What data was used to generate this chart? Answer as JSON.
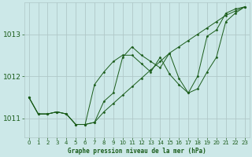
{
  "bg_color": "#cce8e8",
  "grid_color": "#b0c8c8",
  "line_color": "#1a5c1a",
  "marker_color": "#1a5c1a",
  "xlabel": "Graphe pression niveau de la mer (hPa)",
  "xlabel_color": "#1a5c1a",
  "ylim": [
    1010.55,
    1013.75
  ],
  "xlim": [
    -0.5,
    23.5
  ],
  "yticks": [
    1011,
    1012,
    1013
  ],
  "xticks": [
    0,
    1,
    2,
    3,
    4,
    5,
    6,
    7,
    8,
    9,
    10,
    11,
    12,
    13,
    14,
    15,
    16,
    17,
    18,
    19,
    20,
    21,
    22,
    23
  ],
  "series": [
    [
      1011.5,
      1011.1,
      1011.1,
      1011.15,
      1011.1,
      1010.85,
      1010.85,
      1010.9,
      1011.15,
      1011.35,
      1011.55,
      1011.75,
      1011.95,
      1012.15,
      1012.35,
      1012.55,
      1012.7,
      1012.85,
      1013.0,
      1013.15,
      1013.3,
      1013.45,
      1013.55,
      1013.65
    ],
    [
      1011.5,
      1011.1,
      1011.1,
      1011.15,
      1011.1,
      1010.85,
      1010.85,
      1011.8,
      1012.1,
      1012.35,
      1012.5,
      1012.5,
      1012.3,
      1012.1,
      1012.45,
      1012.05,
      1011.8,
      1011.6,
      1012.0,
      1012.95,
      1013.1,
      1013.5,
      1013.6,
      1013.65
    ],
    [
      1011.5,
      1011.1,
      1011.1,
      1011.15,
      1011.1,
      1010.85,
      1010.85,
      1010.9,
      1011.4,
      1011.6,
      1012.45,
      1012.7,
      1012.5,
      1012.35,
      1012.2,
      1012.55,
      1011.95,
      1011.6,
      1011.7,
      1012.1,
      1012.45,
      1013.3,
      1013.5,
      1013.65
    ]
  ]
}
